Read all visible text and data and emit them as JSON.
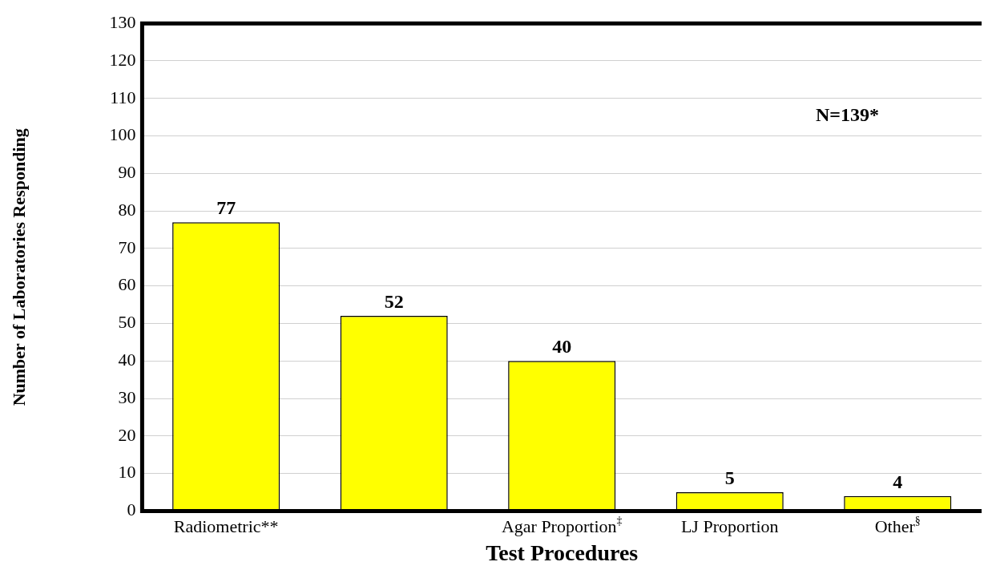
{
  "chart_data": {
    "type": "bar",
    "xlabel": "Test Procedures",
    "ylabel": "Number of Laboratories Responding",
    "categories": [
      "Radiometric**",
      null,
      "Agar Proportion$^{‡}$",
      "LJ Proportion",
      "Other$^{§}$"
    ],
    "values": [
      77,
      52,
      40,
      5,
      4
    ],
    "color": "#ffff00",
    "data_labels": true,
    "ylim": [
      0,
      130
    ],
    "yticks": [
      0,
      10,
      20,
      30,
      40,
      50,
      60,
      70,
      80,
      90,
      100,
      110,
      120,
      130
    ],
    "grid": "y",
    "annotations": [
      "N=139*"
    ]
  }
}
